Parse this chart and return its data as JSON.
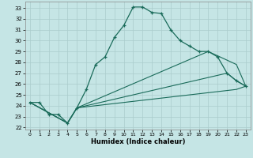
{
  "xlabel": "Humidex (Indice chaleur)",
  "bg_color": "#c5e5e5",
  "grid_color": "#aacccc",
  "line_color": "#1a6b5a",
  "xlim": [
    -0.5,
    23.5
  ],
  "ylim": [
    21.8,
    33.6
  ],
  "xticks": [
    0,
    1,
    2,
    3,
    4,
    5,
    6,
    7,
    8,
    9,
    10,
    11,
    12,
    13,
    14,
    15,
    16,
    17,
    18,
    19,
    20,
    21,
    22,
    23
  ],
  "yticks": [
    22,
    23,
    24,
    25,
    26,
    27,
    28,
    29,
    30,
    31,
    32,
    33
  ],
  "main_x": [
    0,
    1,
    2,
    3,
    4,
    5,
    6,
    7,
    8,
    9,
    10,
    11,
    12,
    13,
    14,
    15,
    16,
    17,
    18,
    19,
    20,
    21,
    22,
    23
  ],
  "main_y": [
    24.3,
    24.3,
    23.2,
    23.2,
    22.4,
    23.8,
    25.5,
    27.8,
    28.5,
    30.3,
    31.4,
    33.1,
    33.1,
    32.6,
    32.5,
    31.0,
    30.0,
    29.5,
    29.0,
    29.0,
    28.5,
    27.0,
    26.3,
    25.8
  ],
  "line2_x": [
    0,
    4,
    5,
    19,
    22,
    23
  ],
  "line2_y": [
    24.3,
    22.4,
    23.8,
    29.0,
    27.8,
    25.8
  ],
  "line3_x": [
    0,
    4,
    5,
    21,
    22,
    23
  ],
  "line3_y": [
    24.3,
    22.4,
    23.8,
    27.0,
    26.3,
    25.8
  ],
  "line4_x": [
    0,
    4,
    5,
    22,
    23
  ],
  "line4_y": [
    24.3,
    22.4,
    23.8,
    25.5,
    25.8
  ]
}
